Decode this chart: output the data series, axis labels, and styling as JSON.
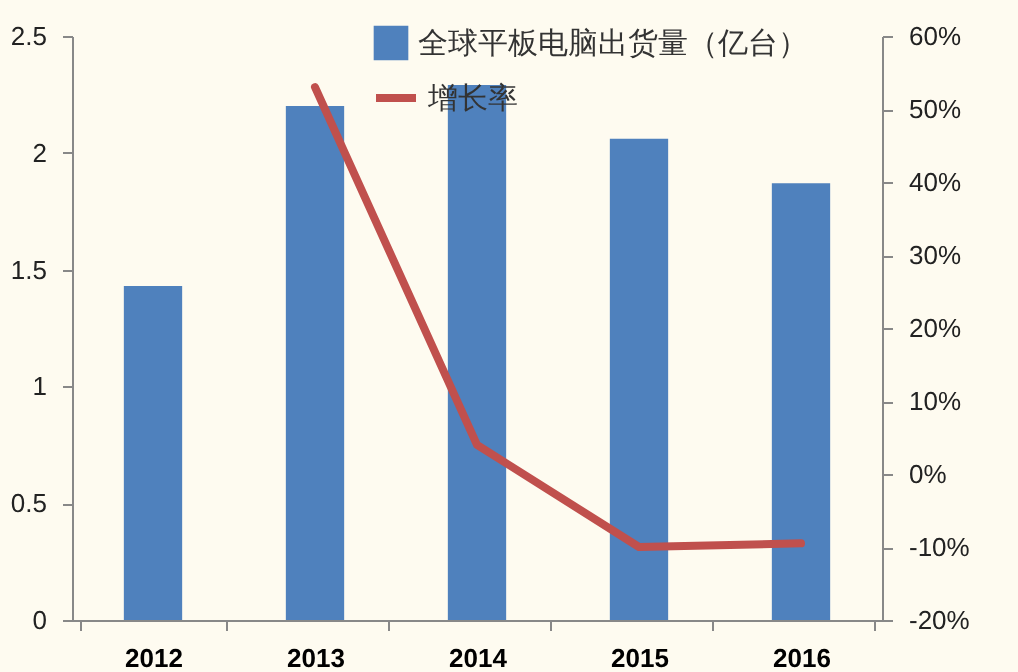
{
  "chart_data": {
    "type": "bar",
    "categories": [
      "2012",
      "2013",
      "2014",
      "2015",
      "2016"
    ],
    "series": [
      {
        "name": "全球平板电脑出货量（亿台）",
        "color": "#4f81bd",
        "values": [
          1.43,
          2.2,
          2.29,
          2.06,
          1.87
        ]
      },
      {
        "name": "增长率",
        "type": "line",
        "axis": "y2",
        "color": "#c0504d",
        "values": [
          null,
          53,
          4,
          -10,
          -9.5
        ]
      }
    ],
    "ylim": [
      0,
      2.5
    ],
    "yticks": [
      0,
      0.5,
      1,
      1.5,
      2,
      2.5
    ],
    "y2lim": [
      -20,
      60
    ],
    "y2ticks": [
      {
        "value": -20,
        "label": "-20%"
      },
      {
        "value": -10,
        "label": "-10%"
      },
      {
        "value": 0,
        "label": "0%"
      },
      {
        "value": 10,
        "label": "10%"
      },
      {
        "value": 20,
        "label": "20%"
      },
      {
        "value": 30,
        "label": "30%"
      },
      {
        "value": 40,
        "label": "40%"
      },
      {
        "value": 50,
        "label": "50%"
      },
      {
        "value": 60,
        "label": "60%"
      }
    ],
    "legend": "top",
    "grid": false,
    "marker": "none",
    "line_style": "solid"
  }
}
